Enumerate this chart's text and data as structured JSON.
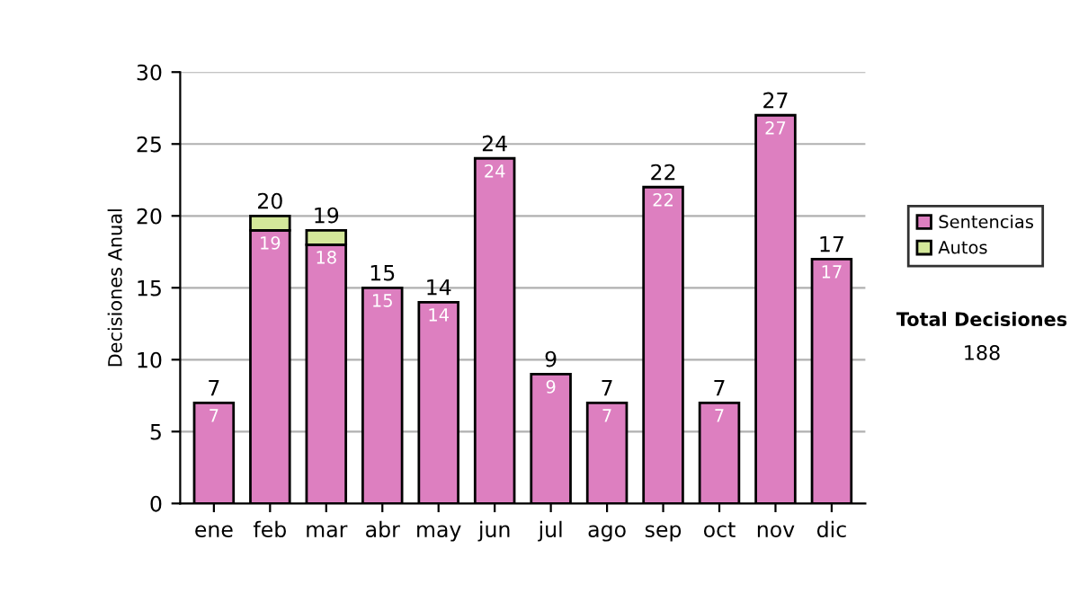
{
  "chart_data": {
    "type": "bar",
    "stacked": true,
    "ylabel": "Decisiones Anual",
    "categories": [
      "ene",
      "feb",
      "mar",
      "abr",
      "may",
      "jun",
      "jul",
      "ago",
      "sep",
      "oct",
      "nov",
      "dic"
    ],
    "series": [
      {
        "name": "Sentencias",
        "color": "#dd7fc0",
        "values": [
          7,
          19,
          18,
          15,
          14,
          24,
          9,
          7,
          22,
          7,
          27,
          17
        ],
        "value_labels": [
          "7",
          "19",
          "18",
          "15",
          "14",
          "24",
          "9",
          "7",
          "22",
          "7",
          "27",
          "17"
        ]
      },
      {
        "name": "Autos",
        "color": "#d4e89a",
        "values": [
          null,
          1,
          1,
          null,
          null,
          null,
          null,
          null,
          null,
          null,
          null,
          null
        ]
      }
    ],
    "totals": [
      "7",
      "20",
      "19",
      "15",
      "14",
      "24",
      "9",
      "7",
      "22",
      "7",
      "27",
      "17"
    ],
    "ylim": [
      0,
      30
    ],
    "yticks": [
      0,
      5,
      10,
      15,
      20,
      25,
      30
    ],
    "grid": "y",
    "legend": "right",
    "annotations": [
      "Total Decisiones",
      "188"
    ]
  }
}
